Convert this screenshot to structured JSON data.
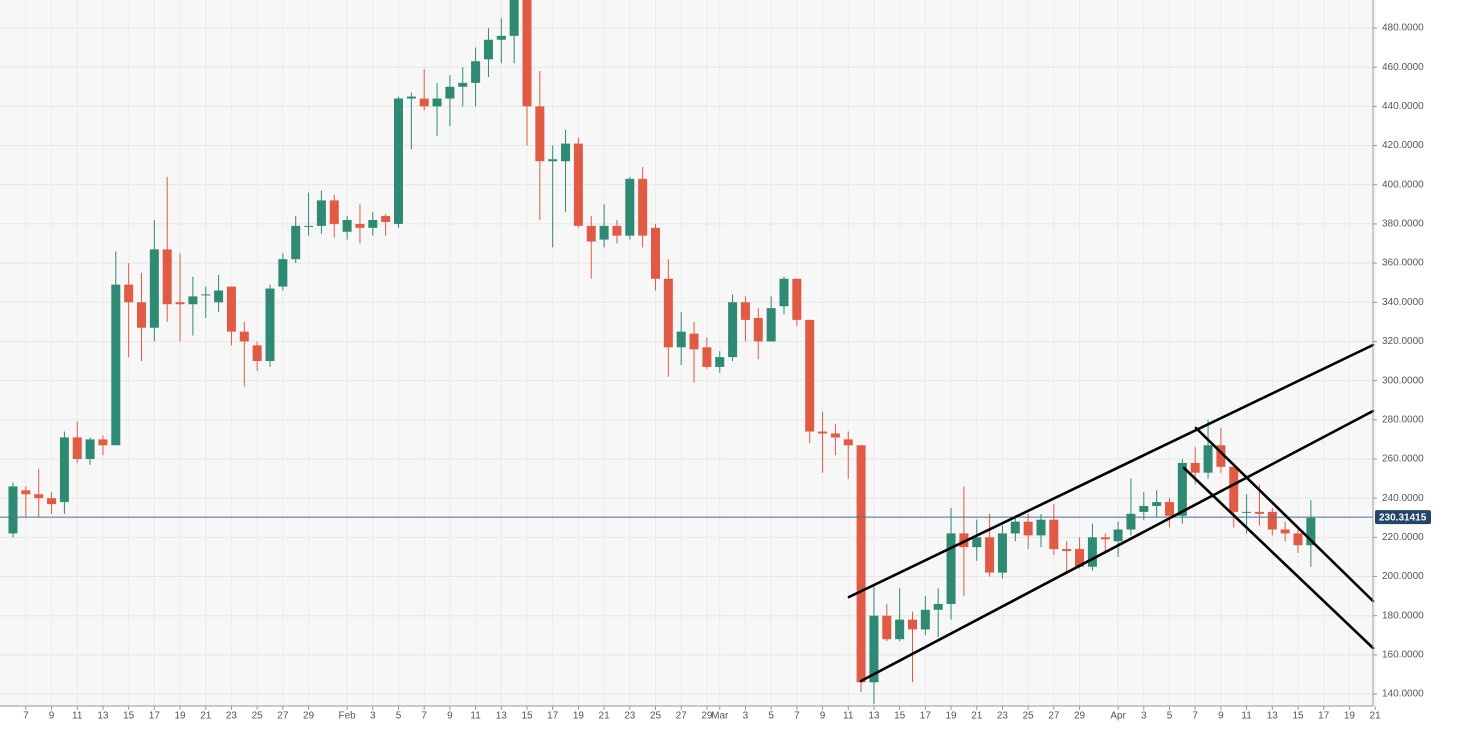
{
  "chart_data": {
    "type": "candlestick",
    "categories": [
      null,
      "7",
      null,
      "9",
      null,
      "11",
      null,
      "13",
      null,
      "15",
      null,
      "17",
      null,
      "19",
      null,
      "21",
      null,
      "23",
      null,
      "25",
      null,
      "27",
      null,
      "29",
      null,
      null,
      "Feb",
      null,
      "3",
      null,
      "5",
      null,
      "7",
      null,
      "9",
      null,
      "11",
      null,
      "13",
      null,
      "15",
      null,
      "17",
      null,
      "19",
      null,
      "21",
      null,
      "23",
      null,
      "25",
      null,
      "27",
      null,
      "29",
      "Mar",
      null,
      "3",
      null,
      "5",
      null,
      "7",
      null,
      "9",
      null,
      "11",
      null,
      "13",
      null,
      "15",
      null,
      "17",
      null,
      "19",
      null,
      "21",
      null,
      "23",
      null,
      "25",
      null,
      "27",
      null,
      "29",
      null,
      null,
      "Apr",
      null,
      "3",
      null,
      "5",
      null,
      "7",
      null,
      "9",
      null,
      "11",
      null,
      "13",
      null,
      "15",
      null,
      "17",
      null,
      "19",
      null,
      "21"
    ],
    "open": [
      222,
      244,
      242,
      240,
      238,
      271,
      260,
      270,
      267,
      349,
      340,
      327,
      367,
      340,
      339,
      344,
      340,
      348,
      325,
      318,
      310,
      348,
      362,
      379,
      379,
      392,
      376,
      380,
      378,
      384,
      380,
      444,
      444,
      440,
      444,
      450,
      452,
      464,
      474,
      476,
      496,
      440,
      412,
      412,
      421,
      379,
      372,
      379,
      374,
      403,
      378,
      352,
      317,
      324,
      317,
      307,
      312,
      340,
      332,
      320,
      338,
      352,
      331,
      274,
      273,
      270,
      267,
      146,
      180,
      168,
      178,
      173,
      183,
      186,
      222,
      215,
      220,
      202,
      222,
      228,
      221,
      229,
      214,
      214,
      205,
      220,
      218,
      224,
      233,
      236,
      238,
      231,
      258,
      253,
      267,
      256,
      233,
      233,
      233,
      224,
      222,
      216,
      null,
      null,
      null,
      null,
      null
    ],
    "high": [
      248,
      246,
      255,
      243,
      274,
      279,
      271,
      272,
      366,
      360,
      355,
      382,
      404,
      365,
      353,
      348,
      354,
      348,
      330,
      320,
      349,
      365,
      384,
      396,
      397,
      395,
      384,
      390,
      386,
      385,
      445,
      447,
      459,
      452,
      456,
      460,
      470,
      480,
      485,
      500,
      500,
      458,
      420,
      428,
      424,
      384,
      390,
      382,
      404,
      409,
      380,
      362,
      335,
      330,
      322,
      315,
      344,
      343,
      337,
      343,
      353,
      352,
      331,
      284,
      278,
      274,
      267,
      195,
      186,
      194,
      182,
      190,
      194,
      235,
      246,
      229,
      232,
      226,
      230,
      232,
      232,
      237,
      218,
      220,
      227,
      222,
      228,
      250,
      243,
      244,
      240,
      260,
      266,
      280,
      276,
      258,
      242,
      247,
      235,
      228,
      224,
      239,
      null,
      null,
      null,
      null,
      null
    ],
    "low": [
      220,
      230,
      230,
      232,
      232,
      258,
      257,
      262,
      267,
      312,
      310,
      320,
      330,
      320,
      323,
      332,
      335,
      318,
      297,
      305,
      307,
      346,
      360,
      374,
      375,
      373,
      372,
      370,
      374,
      374,
      378,
      418,
      438,
      425,
      430,
      440,
      440,
      455,
      462,
      462,
      420,
      382,
      368,
      386,
      378,
      352,
      368,
      370,
      372,
      368,
      346,
      302,
      308,
      299,
      306,
      304,
      310,
      320,
      311,
      320,
      334,
      328,
      268,
      253,
      262,
      250,
      141,
      135,
      167,
      167,
      146,
      170,
      169,
      178,
      190,
      208,
      200,
      199,
      218,
      214,
      215,
      211,
      202,
      204,
      203,
      212,
      210,
      221,
      229,
      230,
      225,
      227,
      247,
      250,
      253,
      225,
      222,
      226,
      221,
      218,
      212,
      205,
      null,
      null,
      null,
      null,
      null
    ],
    "close": [
      246,
      242,
      240,
      237,
      271,
      260,
      270,
      267,
      349,
      340,
      327,
      367,
      339,
      339,
      343,
      344,
      346,
      325,
      320,
      310,
      347,
      362,
      379,
      379,
      392,
      380,
      382,
      378,
      382,
      381,
      444,
      445,
      440,
      444,
      450,
      452,
      463,
      474,
      476,
      496,
      440,
      412,
      413,
      421,
      379,
      371,
      379,
      374,
      403,
      374,
      352,
      317,
      325,
      316,
      307,
      312,
      340,
      331,
      320,
      337,
      352,
      331,
      274,
      273,
      271,
      267,
      146,
      180,
      168,
      178,
      173,
      183,
      186,
      222,
      215,
      220,
      202,
      222,
      228,
      221,
      229,
      214,
      213,
      205,
      220,
      219,
      224,
      232,
      236,
      238,
      231,
      258,
      253,
      267,
      256,
      233,
      233,
      232,
      224,
      222,
      216,
      230,
      null,
      null,
      null,
      null,
      null
    ],
    "up_color": "#2e8a72",
    "down_color": "#e05a44",
    "ylim": [
      133.9,
      494.3
    ],
    "yticks": [
      {
        "value": 140,
        "label": "140.0000"
      },
      {
        "value": 160,
        "label": "160.0000"
      },
      {
        "value": 180,
        "label": "180.0000"
      },
      {
        "value": 200,
        "label": "200.0000"
      },
      {
        "value": 220,
        "label": "220.0000"
      },
      {
        "value": 240,
        "label": "240.0000"
      },
      {
        "value": 260,
        "label": "260.0000"
      },
      {
        "value": 280,
        "label": "280.0000"
      },
      {
        "value": 300,
        "label": "300.0000"
      },
      {
        "value": 320,
        "label": "320.0000"
      },
      {
        "value": 340,
        "label": "340.0000"
      },
      {
        "value": 360,
        "label": "360.0000"
      },
      {
        "value": 380,
        "label": "380.0000"
      },
      {
        "value": 400,
        "label": "400.0000"
      },
      {
        "value": 420,
        "label": "420.0000"
      },
      {
        "value": 440,
        "label": "440.0000"
      },
      {
        "value": 460,
        "label": "460.0000"
      },
      {
        "value": 480,
        "label": "480.0000"
      }
    ],
    "price_line": 230.31415,
    "price_color": "#4d6f96",
    "grid": true
  }
}
